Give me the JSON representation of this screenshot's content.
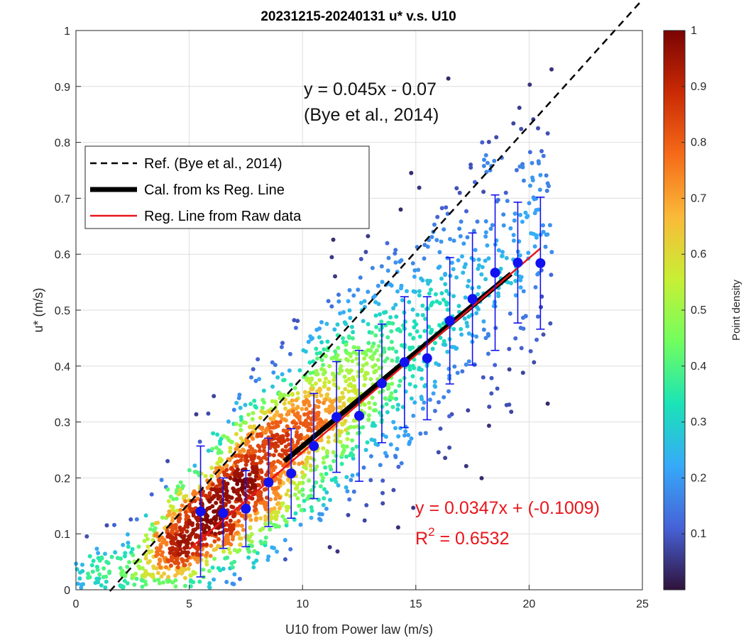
{
  "chart_data": {
    "type": "scatter",
    "title": "20231215-20240131 u* v.s. U10",
    "xlabel": "U10 from Power law (m/s)",
    "ylabel": "u* (m/s)",
    "xlim": [
      0,
      25
    ],
    "ylim": [
      0,
      1
    ],
    "xticks": [
      "0",
      "5",
      "10",
      "15",
      "20",
      "25"
    ],
    "yticks": [
      "0",
      "0.1",
      "0.2",
      "0.3",
      "0.4",
      "0.5",
      "0.6",
      "0.7",
      "0.8",
      "0.9",
      "1"
    ],
    "grid": true,
    "legend": {
      "position": "top-left",
      "entries": [
        {
          "label": "Ref. (Bye et al., 2014)",
          "style": "dashed",
          "color": "#000000"
        },
        {
          "label": "Cal. from ks Reg. Line",
          "style": "thick",
          "color": "#000000"
        },
        {
          "label": "Reg. Line from Raw data",
          "style": "solid",
          "color": "#e8161b"
        }
      ]
    },
    "annotations": {
      "bye_line1": "y = 0.045x - 0.07",
      "bye_line2": "(Bye et al., 2014)",
      "reg_eq": "y = 0.0347x + (-0.1009)",
      "r2_label": "R",
      "r2_sup": "2",
      "r2_value": " = 0.6532"
    },
    "reference_line": {
      "slope": 0.045,
      "intercept": -0.07,
      "x_range": [
        1.5,
        25
      ],
      "color": "#000000"
    },
    "ks_line": {
      "x_range": [
        9.2,
        19.2
      ],
      "y_range": [
        0.23,
        0.565
      ],
      "color": "#000000"
    },
    "raw_regression": {
      "slope": 0.0347,
      "intercept": -0.1009,
      "x_range": [
        5.0,
        20.5
      ],
      "color": "#e8161b"
    },
    "binned_means": {
      "color": "#1212f0",
      "x": [
        5.5,
        6.5,
        7.5,
        8.5,
        9.5,
        10.5,
        11.5,
        12.5,
        13.5,
        14.5,
        15.5,
        16.5,
        17.5,
        18.5,
        19.5,
        20.5
      ],
      "y": [
        0.14,
        0.137,
        0.145,
        0.192,
        0.208,
        0.257,
        0.309,
        0.311,
        0.369,
        0.407,
        0.414,
        0.481,
        0.52,
        0.567,
        0.585,
        0.584
      ],
      "err": [
        0.117,
        0.063,
        0.068,
        0.079,
        0.08,
        0.094,
        0.099,
        0.117,
        0.106,
        0.117,
        0.11,
        0.113,
        0.118,
        0.139,
        0.108,
        0.118
      ]
    },
    "colorbar": {
      "label": "Point density",
      "range": [
        0,
        1
      ],
      "ticks": [
        "0.1",
        "0.2",
        "0.3",
        "0.4",
        "0.5",
        "0.6",
        "0.7",
        "0.8",
        "0.9",
        "1"
      ],
      "colormap": [
        "#30123b",
        "#4662d7",
        "#36aaf9",
        "#1ae4b6",
        "#72fe5e",
        "#c8ef34",
        "#faba39",
        "#f66b19",
        "#ca2a04",
        "#7a0403"
      ]
    }
  }
}
